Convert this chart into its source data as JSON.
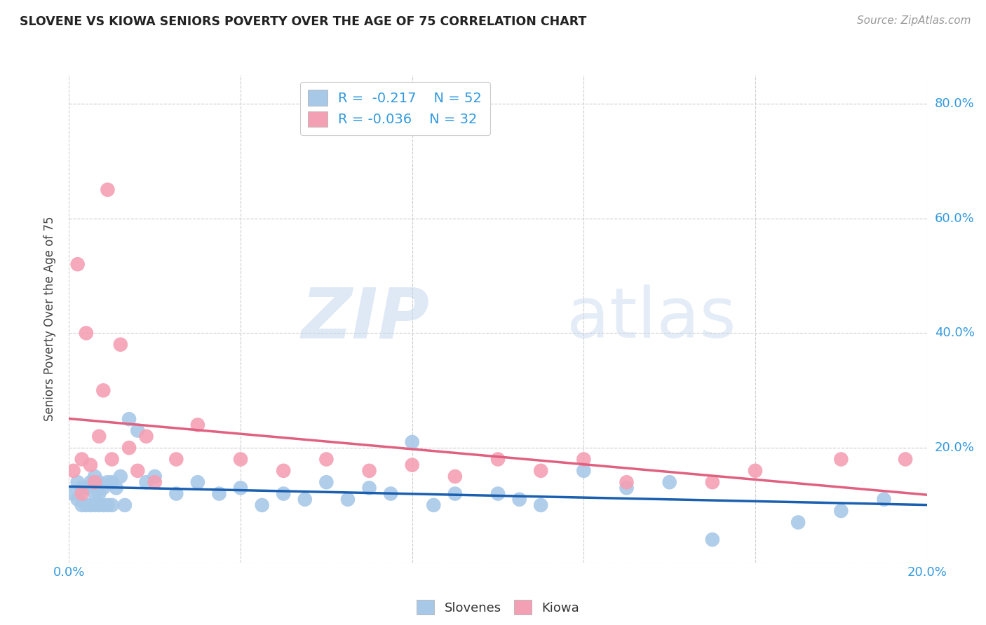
{
  "title": "SLOVENE VS KIOWA SENIORS POVERTY OVER THE AGE OF 75 CORRELATION CHART",
  "source": "Source: ZipAtlas.com",
  "ylabel": "Seniors Poverty Over the Age of 75",
  "xlim": [
    0.0,
    0.2
  ],
  "ylim": [
    0.0,
    0.85
  ],
  "xticks": [
    0.0,
    0.04,
    0.08,
    0.12,
    0.16,
    0.2
  ],
  "yticks": [
    0.0,
    0.2,
    0.4,
    0.6,
    0.8
  ],
  "ytick_labels": [
    "",
    "20.0%",
    "40.0%",
    "60.0%",
    "80.0%"
  ],
  "xtick_labels": [
    "0.0%",
    "",
    "",
    "",
    "",
    "20.0%"
  ],
  "grid_color": "#cccccc",
  "background_color": "#ffffff",
  "watermark_zip": "ZIP",
  "watermark_atlas": "atlas",
  "legend_R_slovene": "-0.217",
  "legend_N_slovene": "52",
  "legend_R_kiowa": "-0.036",
  "legend_N_kiowa": "32",
  "slovene_color": "#a8c8e8",
  "kiowa_color": "#f4a0b4",
  "slovene_line_color": "#1a5fb0",
  "kiowa_line_color": "#e06080",
  "title_color": "#222222",
  "axis_label_color": "#444444",
  "tick_color": "#3399dd",
  "slovene_x": [
    0.001,
    0.002,
    0.002,
    0.003,
    0.003,
    0.004,
    0.004,
    0.005,
    0.005,
    0.006,
    0.006,
    0.006,
    0.007,
    0.007,
    0.007,
    0.008,
    0.008,
    0.009,
    0.009,
    0.01,
    0.01,
    0.011,
    0.012,
    0.013,
    0.014,
    0.016,
    0.018,
    0.02,
    0.025,
    0.03,
    0.035,
    0.04,
    0.045,
    0.05,
    0.055,
    0.06,
    0.065,
    0.07,
    0.075,
    0.08,
    0.085,
    0.09,
    0.1,
    0.105,
    0.11,
    0.12,
    0.13,
    0.14,
    0.15,
    0.17,
    0.18,
    0.19
  ],
  "slovene_y": [
    0.12,
    0.11,
    0.14,
    0.1,
    0.13,
    0.1,
    0.13,
    0.1,
    0.14,
    0.1,
    0.12,
    0.15,
    0.1,
    0.12,
    0.14,
    0.1,
    0.13,
    0.1,
    0.14,
    0.1,
    0.14,
    0.13,
    0.15,
    0.1,
    0.25,
    0.23,
    0.14,
    0.15,
    0.12,
    0.14,
    0.12,
    0.13,
    0.1,
    0.12,
    0.11,
    0.14,
    0.11,
    0.13,
    0.12,
    0.21,
    0.1,
    0.12,
    0.12,
    0.11,
    0.1,
    0.16,
    0.13,
    0.14,
    0.04,
    0.07,
    0.09,
    0.11
  ],
  "kiowa_x": [
    0.001,
    0.002,
    0.003,
    0.003,
    0.004,
    0.005,
    0.006,
    0.007,
    0.008,
    0.009,
    0.01,
    0.012,
    0.014,
    0.016,
    0.018,
    0.02,
    0.025,
    0.03,
    0.04,
    0.05,
    0.06,
    0.07,
    0.08,
    0.09,
    0.1,
    0.11,
    0.12,
    0.13,
    0.15,
    0.16,
    0.18,
    0.195
  ],
  "kiowa_y": [
    0.16,
    0.52,
    0.12,
    0.18,
    0.4,
    0.17,
    0.14,
    0.22,
    0.3,
    0.65,
    0.18,
    0.38,
    0.2,
    0.16,
    0.22,
    0.14,
    0.18,
    0.24,
    0.18,
    0.16,
    0.18,
    0.16,
    0.17,
    0.15,
    0.18,
    0.16,
    0.18,
    0.14,
    0.14,
    0.16,
    0.18,
    0.18
  ]
}
